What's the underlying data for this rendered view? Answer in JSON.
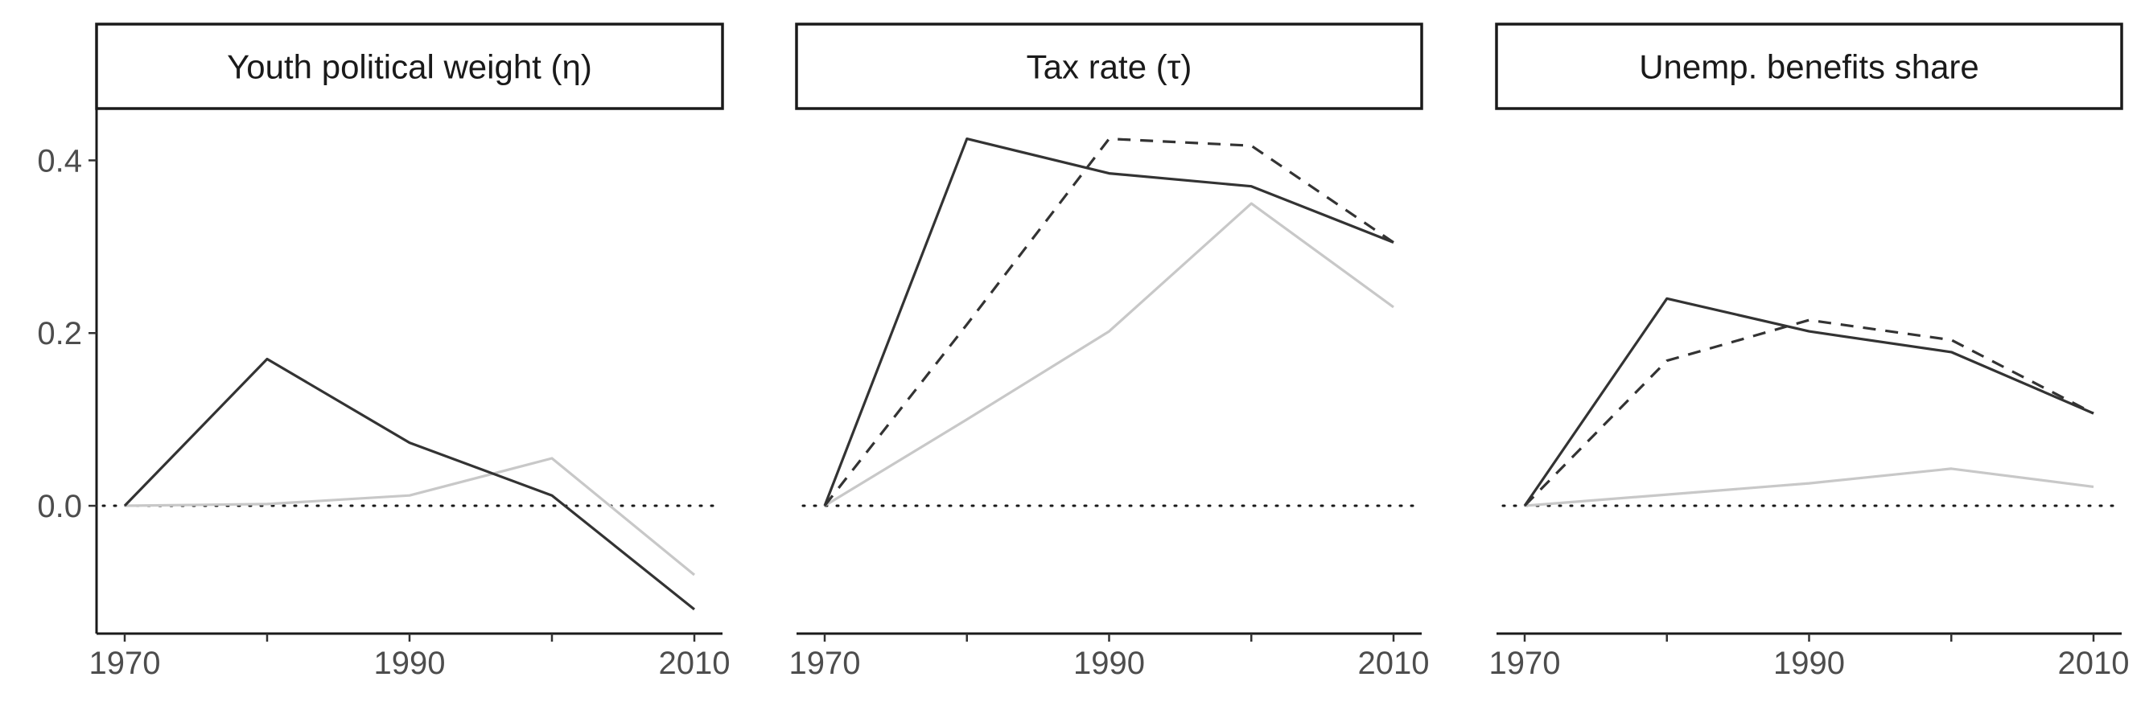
{
  "chart_data": {
    "type": "line",
    "facets": [
      {
        "title": "Youth political weight (η)",
        "x": [
          1970,
          1980,
          1990,
          2000,
          2010
        ],
        "series": [
          {
            "style": "solid",
            "color": "#333333",
            "values": [
              0.0,
              0.17,
              0.073,
              0.012,
              -0.12
            ]
          },
          {
            "style": "solid",
            "color": "#c8c8c8",
            "values": [
              0.0,
              0.002,
              0.012,
              0.055,
              -0.08
            ]
          }
        ]
      },
      {
        "title": "Tax rate (τ)",
        "x": [
          1970,
          1980,
          1990,
          2000,
          2010
        ],
        "series": [
          {
            "style": "solid",
            "color": "#333333",
            "values": [
              0.0,
              0.425,
              0.385,
              0.37,
              0.305
            ]
          },
          {
            "style": "dashed",
            "color": "#333333",
            "values": [
              0.0,
              0.21,
              0.425,
              0.417,
              0.305
            ]
          },
          {
            "style": "solid",
            "color": "#c8c8c8",
            "values": [
              0.0,
              0.1,
              0.202,
              0.35,
              0.23
            ]
          }
        ]
      },
      {
        "title": "Unemp. benefits share",
        "x": [
          1970,
          1980,
          1990,
          2000,
          2010
        ],
        "series": [
          {
            "style": "solid",
            "color": "#333333",
            "values": [
              0.0,
              0.24,
              0.202,
              0.178,
              0.107
            ]
          },
          {
            "style": "dashed",
            "color": "#333333",
            "values": [
              0.0,
              0.168,
              0.215,
              0.192,
              0.107
            ]
          },
          {
            "style": "solid",
            "color": "#c8c8c8",
            "values": [
              0.0,
              0.013,
              0.026,
              0.043,
              0.022
            ]
          }
        ]
      }
    ],
    "xticks": [
      1970,
      1990,
      2010
    ],
    "xticks_minor": [
      1980,
      2000
    ],
    "xlim": [
      1970,
      2010
    ],
    "yticks": [
      0.0,
      0.2,
      0.4
    ],
    "ytick_labels": [
      "0.0",
      "0.2",
      "0.4"
    ],
    "ylim": [
      -0.148,
      0.46
    ],
    "reference_line": {
      "y": 0,
      "style": "dotted"
    },
    "shared_y_axis": true
  }
}
